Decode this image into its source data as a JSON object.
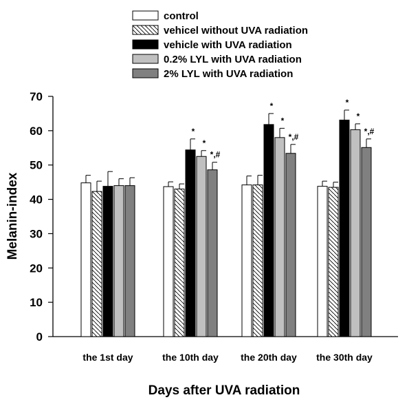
{
  "chart_data": {
    "type": "bar",
    "title": "",
    "xlabel": "Days after UVA radiation",
    "ylabel": "Melanin-index",
    "ylim": [
      0,
      70
    ],
    "yticks": [
      0,
      10,
      20,
      30,
      40,
      50,
      60,
      70
    ],
    "grid": false,
    "legend_position": "top",
    "categories": [
      "the 1st day",
      "the 10th day",
      "the 20th day",
      "the 30th day"
    ],
    "series": [
      {
        "name": "control",
        "fill": "white",
        "color": "#ffffff",
        "values": [
          44.8,
          43.7,
          44.2,
          43.8
        ],
        "errors": [
          2.2,
          1.4,
          2.6,
          1.5
        ],
        "annotations": [
          "",
          "",
          "",
          ""
        ]
      },
      {
        "name": "vehicel without UVA radiation",
        "fill": "hatch",
        "color": "#ffffff",
        "values": [
          42.3,
          43.0,
          44.2,
          43.5
        ],
        "errors": [
          3.0,
          1.5,
          2.8,
          1.5
        ],
        "annotations": [
          "",
          "",
          "",
          ""
        ]
      },
      {
        "name": "vehicle with UVA radiation",
        "fill": "solid",
        "color": "#000000",
        "values": [
          43.8,
          54.4,
          61.8,
          63.1
        ],
        "errors": [
          4.3,
          3.2,
          3.2,
          2.9
        ],
        "annotations": [
          "",
          "*",
          "*",
          "*"
        ]
      },
      {
        "name": "0.2% LYL with UVA radiation",
        "fill": "solid",
        "color": "#c0c0c0",
        "values": [
          44.0,
          52.5,
          58.0,
          60.3
        ],
        "errors": [
          2.0,
          1.7,
          2.7,
          1.7
        ],
        "annotations": [
          "",
          "*",
          "*",
          "*"
        ]
      },
      {
        "name": "2% LYL with UVA radiation",
        "fill": "solid",
        "color": "#808080",
        "values": [
          44.0,
          48.6,
          53.4,
          55.1
        ],
        "errors": [
          2.3,
          2.2,
          2.6,
          2.5
        ],
        "annotations": [
          "",
          "*,#",
          "*,#",
          "*,#"
        ]
      }
    ]
  }
}
